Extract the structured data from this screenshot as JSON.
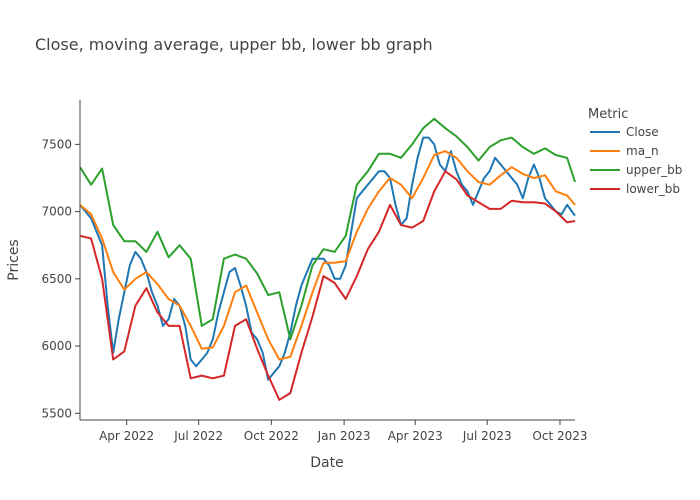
{
  "chart_data": {
    "type": "line",
    "title": "Close, moving average, upper bb, lower bb graph",
    "xlabel": "Date",
    "ylabel": "Prices",
    "xlim": [
      "2022-02-01",
      "2023-10-20"
    ],
    "ylim": [
      5450,
      7830
    ],
    "x_ticks": [
      {
        "date": "2022-04-01",
        "label": "Apr 2022"
      },
      {
        "date": "2022-07-01",
        "label": "Jul 2022"
      },
      {
        "date": "2022-10-01",
        "label": "Oct 2022"
      },
      {
        "date": "2023-01-01",
        "label": "Jan 2023"
      },
      {
        "date": "2023-04-01",
        "label": "Apr 2023"
      },
      {
        "date": "2023-07-01",
        "label": "Jul 2023"
      },
      {
        "date": "2023-10-01",
        "label": "Oct 2023"
      }
    ],
    "y_ticks": [
      5500,
      6000,
      6500,
      7000,
      7500
    ],
    "legend": {
      "title": "Metric",
      "position": "right"
    },
    "grid": false,
    "series": [
      {
        "name": "Close",
        "color": "#1f77b4",
        "points": [
          [
            "2022-02-01",
            7050
          ],
          [
            "2022-02-15",
            6950
          ],
          [
            "2022-03-01",
            6750
          ],
          [
            "2022-03-08",
            6300
          ],
          [
            "2022-03-15",
            5950
          ],
          [
            "2022-03-22",
            6200
          ],
          [
            "2022-03-29",
            6400
          ],
          [
            "2022-04-05",
            6600
          ],
          [
            "2022-04-12",
            6700
          ],
          [
            "2022-04-19",
            6650
          ],
          [
            "2022-04-26",
            6550
          ],
          [
            "2022-05-03",
            6400
          ],
          [
            "2022-05-10",
            6300
          ],
          [
            "2022-05-17",
            6150
          ],
          [
            "2022-05-24",
            6200
          ],
          [
            "2022-05-31",
            6350
          ],
          [
            "2022-06-07",
            6300
          ],
          [
            "2022-06-14",
            6150
          ],
          [
            "2022-06-21",
            5900
          ],
          [
            "2022-06-28",
            5850
          ],
          [
            "2022-07-05",
            5900
          ],
          [
            "2022-07-12",
            5950
          ],
          [
            "2022-07-19",
            6050
          ],
          [
            "2022-07-26",
            6250
          ],
          [
            "2022-08-02",
            6400
          ],
          [
            "2022-08-09",
            6550
          ],
          [
            "2022-08-16",
            6580
          ],
          [
            "2022-08-23",
            6450
          ],
          [
            "2022-08-30",
            6300
          ],
          [
            "2022-09-06",
            6100
          ],
          [
            "2022-09-13",
            6050
          ],
          [
            "2022-09-20",
            5950
          ],
          [
            "2022-09-27",
            5750
          ],
          [
            "2022-10-04",
            5800
          ],
          [
            "2022-10-11",
            5850
          ],
          [
            "2022-10-18",
            5950
          ],
          [
            "2022-10-25",
            6100
          ],
          [
            "2022-11-01",
            6300
          ],
          [
            "2022-11-08",
            6450
          ],
          [
            "2022-11-15",
            6550
          ],
          [
            "2022-11-22",
            6650
          ],
          [
            "2022-11-29",
            6650
          ],
          [
            "2022-12-06",
            6650
          ],
          [
            "2022-12-13",
            6600
          ],
          [
            "2022-12-20",
            6500
          ],
          [
            "2022-12-27",
            6500
          ],
          [
            "2023-01-03",
            6600
          ],
          [
            "2023-01-10",
            6850
          ],
          [
            "2023-01-17",
            7100
          ],
          [
            "2023-01-24",
            7150
          ],
          [
            "2023-01-31",
            7200
          ],
          [
            "2023-02-07",
            7250
          ],
          [
            "2023-02-14",
            7300
          ],
          [
            "2023-02-21",
            7300
          ],
          [
            "2023-02-28",
            7250
          ],
          [
            "2023-03-07",
            7050
          ],
          [
            "2023-03-14",
            6900
          ],
          [
            "2023-03-21",
            6950
          ],
          [
            "2023-03-28",
            7200
          ],
          [
            "2023-04-04",
            7400
          ],
          [
            "2023-04-11",
            7550
          ],
          [
            "2023-04-18",
            7550
          ],
          [
            "2023-04-25",
            7500
          ],
          [
            "2023-05-02",
            7350
          ],
          [
            "2023-05-09",
            7300
          ],
          [
            "2023-05-16",
            7450
          ],
          [
            "2023-05-23",
            7300
          ],
          [
            "2023-05-30",
            7200
          ],
          [
            "2023-06-06",
            7150
          ],
          [
            "2023-06-13",
            7050
          ],
          [
            "2023-06-20",
            7150
          ],
          [
            "2023-06-27",
            7250
          ],
          [
            "2023-07-04",
            7300
          ],
          [
            "2023-07-11",
            7400
          ],
          [
            "2023-07-18",
            7350
          ],
          [
            "2023-07-25",
            7300
          ],
          [
            "2023-08-01",
            7250
          ],
          [
            "2023-08-08",
            7200
          ],
          [
            "2023-08-15",
            7100
          ],
          [
            "2023-08-22",
            7250
          ],
          [
            "2023-08-29",
            7350
          ],
          [
            "2023-09-05",
            7250
          ],
          [
            "2023-09-12",
            7100
          ],
          [
            "2023-09-19",
            7050
          ],
          [
            "2023-09-26",
            7000
          ],
          [
            "2023-10-03",
            6980
          ],
          [
            "2023-10-10",
            7050
          ],
          [
            "2023-10-20",
            6970
          ]
        ]
      },
      {
        "name": "ma_n",
        "color": "#ff7f0e",
        "points": [
          [
            "2022-02-01",
            7050
          ],
          [
            "2022-02-15",
            6980
          ],
          [
            "2022-03-01",
            6800
          ],
          [
            "2022-03-15",
            6550
          ],
          [
            "2022-03-29",
            6420
          ],
          [
            "2022-04-12",
            6500
          ],
          [
            "2022-04-26",
            6550
          ],
          [
            "2022-05-10",
            6460
          ],
          [
            "2022-05-24",
            6350
          ],
          [
            "2022-06-07",
            6300
          ],
          [
            "2022-06-21",
            6150
          ],
          [
            "2022-07-05",
            5980
          ],
          [
            "2022-07-19",
            5990
          ],
          [
            "2022-08-02",
            6150
          ],
          [
            "2022-08-16",
            6400
          ],
          [
            "2022-08-30",
            6450
          ],
          [
            "2022-09-13",
            6250
          ],
          [
            "2022-09-27",
            6050
          ],
          [
            "2022-10-11",
            5900
          ],
          [
            "2022-10-25",
            5920
          ],
          [
            "2022-11-08",
            6150
          ],
          [
            "2022-11-22",
            6400
          ],
          [
            "2022-12-06",
            6620
          ],
          [
            "2022-12-20",
            6620
          ],
          [
            "2023-01-03",
            6630
          ],
          [
            "2023-01-17",
            6850
          ],
          [
            "2023-01-31",
            7020
          ],
          [
            "2023-02-14",
            7150
          ],
          [
            "2023-02-28",
            7250
          ],
          [
            "2023-03-14",
            7200
          ],
          [
            "2023-03-28",
            7100
          ],
          [
            "2023-04-11",
            7250
          ],
          [
            "2023-04-25",
            7420
          ],
          [
            "2023-05-09",
            7450
          ],
          [
            "2023-05-23",
            7400
          ],
          [
            "2023-06-06",
            7300
          ],
          [
            "2023-06-20",
            7220
          ],
          [
            "2023-07-04",
            7200
          ],
          [
            "2023-07-18",
            7270
          ],
          [
            "2023-08-01",
            7330
          ],
          [
            "2023-08-15",
            7280
          ],
          [
            "2023-08-29",
            7250
          ],
          [
            "2023-09-12",
            7270
          ],
          [
            "2023-09-26",
            7150
          ],
          [
            "2023-10-10",
            7120
          ],
          [
            "2023-10-20",
            7050
          ]
        ]
      },
      {
        "name": "upper_bb",
        "color": "#2ca02c",
        "points": [
          [
            "2022-02-01",
            7330
          ],
          [
            "2022-02-15",
            7200
          ],
          [
            "2022-03-01",
            7320
          ],
          [
            "2022-03-15",
            6900
          ],
          [
            "2022-03-29",
            6780
          ],
          [
            "2022-04-12",
            6780
          ],
          [
            "2022-04-26",
            6700
          ],
          [
            "2022-05-10",
            6850
          ],
          [
            "2022-05-24",
            6660
          ],
          [
            "2022-06-07",
            6750
          ],
          [
            "2022-06-21",
            6650
          ],
          [
            "2022-07-05",
            6150
          ],
          [
            "2022-07-19",
            6200
          ],
          [
            "2022-08-02",
            6650
          ],
          [
            "2022-08-16",
            6680
          ],
          [
            "2022-08-30",
            6650
          ],
          [
            "2022-09-13",
            6540
          ],
          [
            "2022-09-27",
            6380
          ],
          [
            "2022-10-11",
            6400
          ],
          [
            "2022-10-25",
            6050
          ],
          [
            "2022-11-08",
            6300
          ],
          [
            "2022-11-22",
            6600
          ],
          [
            "2022-12-06",
            6720
          ],
          [
            "2022-12-20",
            6700
          ],
          [
            "2023-01-03",
            6820
          ],
          [
            "2023-01-17",
            7200
          ],
          [
            "2023-01-31",
            7300
          ],
          [
            "2023-02-14",
            7430
          ],
          [
            "2023-02-28",
            7430
          ],
          [
            "2023-03-14",
            7400
          ],
          [
            "2023-03-28",
            7500
          ],
          [
            "2023-04-11",
            7620
          ],
          [
            "2023-04-25",
            7690
          ],
          [
            "2023-05-09",
            7620
          ],
          [
            "2023-05-23",
            7560
          ],
          [
            "2023-06-06",
            7480
          ],
          [
            "2023-06-20",
            7380
          ],
          [
            "2023-07-04",
            7480
          ],
          [
            "2023-07-18",
            7530
          ],
          [
            "2023-08-01",
            7550
          ],
          [
            "2023-08-15",
            7480
          ],
          [
            "2023-08-29",
            7430
          ],
          [
            "2023-09-12",
            7470
          ],
          [
            "2023-09-26",
            7420
          ],
          [
            "2023-10-10",
            7400
          ],
          [
            "2023-10-20",
            7220
          ]
        ]
      },
      {
        "name": "lower_bb",
        "color": "#d62728",
        "points": [
          [
            "2022-02-01",
            6820
          ],
          [
            "2022-02-15",
            6800
          ],
          [
            "2022-03-01",
            6500
          ],
          [
            "2022-03-15",
            5900
          ],
          [
            "2022-03-29",
            5960
          ],
          [
            "2022-04-12",
            6300
          ],
          [
            "2022-04-26",
            6430
          ],
          [
            "2022-05-10",
            6250
          ],
          [
            "2022-05-24",
            6150
          ],
          [
            "2022-06-07",
            6150
          ],
          [
            "2022-06-21",
            5760
          ],
          [
            "2022-07-05",
            5780
          ],
          [
            "2022-07-19",
            5760
          ],
          [
            "2022-08-02",
            5780
          ],
          [
            "2022-08-16",
            6150
          ],
          [
            "2022-08-30",
            6200
          ],
          [
            "2022-09-13",
            5980
          ],
          [
            "2022-09-27",
            5780
          ],
          [
            "2022-10-11",
            5600
          ],
          [
            "2022-10-25",
            5650
          ],
          [
            "2022-11-08",
            5950
          ],
          [
            "2022-11-22",
            6220
          ],
          [
            "2022-12-06",
            6520
          ],
          [
            "2022-12-20",
            6470
          ],
          [
            "2023-01-03",
            6350
          ],
          [
            "2023-01-17",
            6520
          ],
          [
            "2023-01-31",
            6720
          ],
          [
            "2023-02-14",
            6850
          ],
          [
            "2023-02-28",
            7050
          ],
          [
            "2023-03-14",
            6900
          ],
          [
            "2023-03-28",
            6880
          ],
          [
            "2023-04-11",
            6930
          ],
          [
            "2023-04-25",
            7150
          ],
          [
            "2023-05-09",
            7300
          ],
          [
            "2023-05-23",
            7240
          ],
          [
            "2023-06-06",
            7120
          ],
          [
            "2023-06-20",
            7070
          ],
          [
            "2023-07-04",
            7020
          ],
          [
            "2023-07-18",
            7020
          ],
          [
            "2023-08-01",
            7080
          ],
          [
            "2023-08-15",
            7070
          ],
          [
            "2023-08-29",
            7070
          ],
          [
            "2023-09-12",
            7060
          ],
          [
            "2023-09-26",
            7000
          ],
          [
            "2023-10-10",
            6920
          ],
          [
            "2023-10-20",
            6930
          ]
        ]
      }
    ]
  }
}
